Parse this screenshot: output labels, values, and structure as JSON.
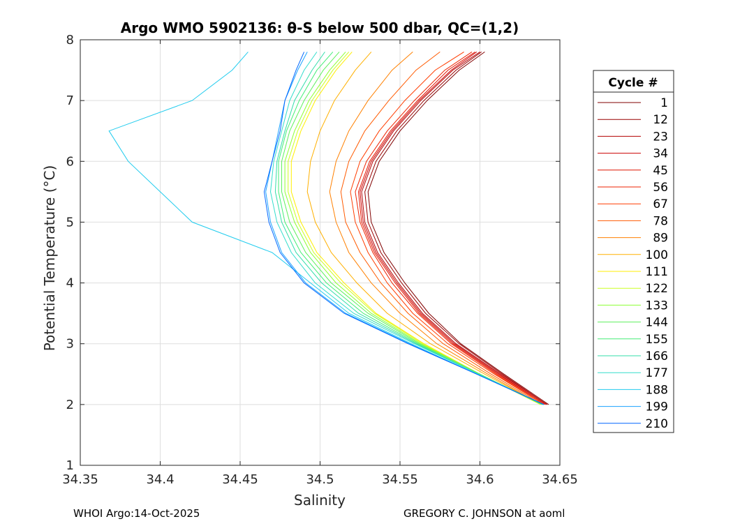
{
  "chart_data": {
    "type": "line",
    "title": "Argo WMO 5902136: θ-S below 500 dbar,  QC=(1,2)",
    "xlabel": "Salinity",
    "ylabel": "Potential Temperature (°C)",
    "xlim": [
      34.35,
      34.65
    ],
    "ylim": [
      1,
      8
    ],
    "xticks": [
      "34.35",
      "34.4",
      "34.45",
      "34.5",
      "34.55",
      "34.6",
      "34.65"
    ],
    "yticks": [
      "1",
      "2",
      "3",
      "4",
      "5",
      "6",
      "7",
      "8"
    ],
    "grid": true,
    "legend": {
      "title": "Cycle #",
      "placement": "outside-right"
    },
    "theta_levels": [
      2.0,
      2.5,
      3.0,
      3.5,
      4.0,
      4.5,
      5.0,
      5.5,
      6.0,
      6.5,
      7.0,
      7.5,
      7.8
    ],
    "series": [
      {
        "name": "1",
        "color": "#800000",
        "salinity": [
          34.643,
          34.615,
          34.588,
          34.568,
          34.553,
          34.54,
          34.532,
          34.53,
          34.537,
          34.55,
          34.567,
          34.587,
          34.603
        ]
      },
      {
        "name": "12",
        "color": "#990000",
        "salinity": [
          34.642,
          34.614,
          34.587,
          34.566,
          34.551,
          34.538,
          34.53,
          34.528,
          34.535,
          34.548,
          34.565,
          34.585,
          34.601
        ]
      },
      {
        "name": "23",
        "color": "#b30000",
        "salinity": [
          34.642,
          34.613,
          34.585,
          34.564,
          34.549,
          34.536,
          34.528,
          34.526,
          34.533,
          34.546,
          34.563,
          34.583,
          34.6
        ]
      },
      {
        "name": "34",
        "color": "#cc0000",
        "salinity": [
          34.641,
          34.612,
          34.584,
          34.563,
          34.548,
          34.535,
          34.527,
          34.525,
          34.532,
          34.545,
          34.562,
          34.582,
          34.598
        ]
      },
      {
        "name": "45",
        "color": "#e01400",
        "salinity": [
          34.641,
          34.611,
          34.583,
          34.562,
          34.547,
          34.534,
          34.526,
          34.524,
          34.531,
          34.544,
          34.561,
          34.58,
          34.597
        ]
      },
      {
        "name": "56",
        "color": "#ee2200",
        "salinity": [
          34.64,
          34.61,
          34.582,
          34.561,
          34.545,
          34.533,
          34.525,
          34.522,
          34.529,
          34.542,
          34.559,
          34.578,
          34.595
        ]
      },
      {
        "name": "67",
        "color": "#ff3c00",
        "salinity": [
          34.64,
          34.609,
          34.58,
          34.558,
          34.542,
          34.53,
          34.522,
          34.519,
          34.525,
          34.537,
          34.553,
          34.572,
          34.59
        ]
      },
      {
        "name": "78",
        "color": "#ff5a00",
        "salinity": [
          34.639,
          34.607,
          34.577,
          34.555,
          34.538,
          34.525,
          34.516,
          34.513,
          34.518,
          34.528,
          34.543,
          34.56,
          34.575
        ]
      },
      {
        "name": "89",
        "color": "#ff8000",
        "salinity": [
          34.638,
          34.605,
          34.573,
          34.55,
          34.532,
          34.518,
          34.51,
          34.506,
          34.51,
          34.518,
          34.53,
          34.545,
          34.558
        ]
      },
      {
        "name": "100",
        "color": "#ffb000",
        "salinity": [
          34.638,
          34.603,
          34.569,
          34.542,
          34.523,
          34.507,
          34.497,
          34.492,
          34.494,
          34.5,
          34.509,
          34.522,
          34.532
        ]
      },
      {
        "name": "111",
        "color": "#ffee00",
        "salinity": [
          34.638,
          34.6,
          34.565,
          34.535,
          34.515,
          34.498,
          34.488,
          34.482,
          34.482,
          34.488,
          34.497,
          34.51,
          34.52
        ]
      },
      {
        "name": "122",
        "color": "#ccff22",
        "salinity": [
          34.638,
          34.6,
          34.564,
          34.534,
          34.513,
          34.496,
          34.486,
          34.48,
          34.48,
          34.486,
          34.495,
          34.508,
          34.518
        ]
      },
      {
        "name": "133",
        "color": "#8cff33",
        "salinity": [
          34.639,
          34.6,
          34.563,
          34.532,
          34.51,
          34.494,
          34.484,
          34.478,
          34.478,
          34.484,
          34.493,
          34.506,
          34.516
        ]
      },
      {
        "name": "144",
        "color": "#5ef05e",
        "salinity": [
          34.639,
          34.6,
          34.562,
          34.53,
          34.507,
          34.491,
          34.481,
          34.476,
          34.476,
          34.481,
          34.49,
          34.502,
          34.512
        ]
      },
      {
        "name": "155",
        "color": "#44ee77",
        "salinity": [
          34.639,
          34.599,
          34.561,
          34.527,
          34.504,
          34.488,
          34.478,
          34.474,
          34.474,
          34.479,
          34.487,
          34.498,
          34.508
        ]
      },
      {
        "name": "166",
        "color": "#33ddaa",
        "salinity": [
          34.64,
          34.599,
          34.56,
          34.524,
          34.501,
          34.485,
          34.476,
          34.472,
          34.473,
          34.478,
          34.484,
          34.495,
          34.503
        ]
      },
      {
        "name": "177",
        "color": "#33ddcc",
        "salinity": [
          34.64,
          34.599,
          34.559,
          34.521,
          34.497,
          34.482,
          34.473,
          34.469,
          34.471,
          34.476,
          34.481,
          34.49,
          34.498
        ]
      },
      {
        "name": "188",
        "color": "#22ccee",
        "salinity": [
          34.64,
          34.598,
          34.557,
          34.518,
          34.494,
          34.47,
          34.42,
          34.4,
          34.38,
          34.368,
          34.42,
          34.445,
          34.455
        ]
      },
      {
        "name": "199",
        "color": "#1aa3ff",
        "salinity": [
          34.64,
          34.598,
          34.556,
          34.516,
          34.491,
          34.476,
          34.469,
          34.466,
          34.47,
          34.474,
          34.478,
          34.486,
          34.492
        ]
      },
      {
        "name": "210",
        "color": "#0066ff",
        "salinity": [
          34.64,
          34.598,
          34.555,
          34.515,
          34.49,
          34.475,
          34.468,
          34.465,
          34.47,
          34.475,
          34.478,
          34.485,
          34.49
        ]
      }
    ]
  },
  "footer": {
    "left": "WHOI Argo:14-Oct-2025",
    "right": "GREGORY C. JOHNSON at aoml"
  }
}
